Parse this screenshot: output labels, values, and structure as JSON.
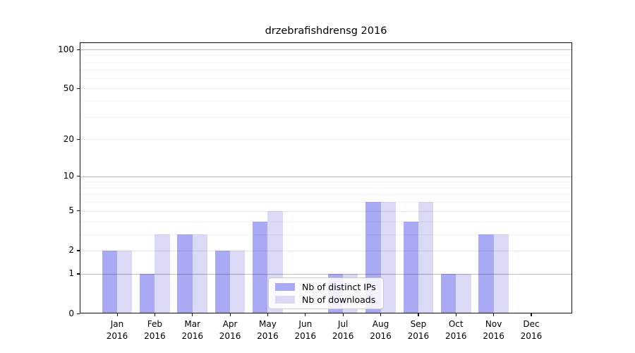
{
  "chart_data": {
    "type": "bar",
    "title": "drzebrafishdrensg 2016",
    "year": "2016",
    "months": [
      "Jan",
      "Feb",
      "Mar",
      "Apr",
      "May",
      "Jun",
      "Jul",
      "Aug",
      "Sep",
      "Oct",
      "Nov",
      "Dec"
    ],
    "categories": [
      "Jan 2016",
      "Feb 2016",
      "Mar 2016",
      "Apr 2016",
      "May 2016",
      "Jun 2016",
      "Jul 2016",
      "Aug 2016",
      "Sep 2016",
      "Oct 2016",
      "Nov 2016",
      "Dec 2016"
    ],
    "series": [
      {
        "name": "Nb of distinct IPs",
        "color": "#a9a9f4",
        "values": [
          2,
          1,
          3,
          2,
          4,
          0,
          1,
          6,
          4,
          1,
          3,
          0
        ]
      },
      {
        "name": "Nb of downloads",
        "color": "#dadaf6",
        "values": [
          2,
          3,
          3,
          2,
          5,
          0,
          1,
          6,
          6,
          1,
          3,
          0
        ]
      }
    ],
    "y_axis": {
      "scale": "log1p",
      "ticks": [
        0,
        1,
        2,
        5,
        10,
        20,
        50,
        100
      ],
      "minor_ticks": [
        3,
        4,
        6,
        7,
        8,
        9,
        30,
        40,
        60,
        70,
        80,
        90
      ],
      "decade_gridlines": [
        1,
        10,
        100
      ],
      "ylim": [
        0,
        113
      ]
    },
    "xlabel": "",
    "ylabel": "",
    "grid": true,
    "legend_position": "lower-center"
  }
}
